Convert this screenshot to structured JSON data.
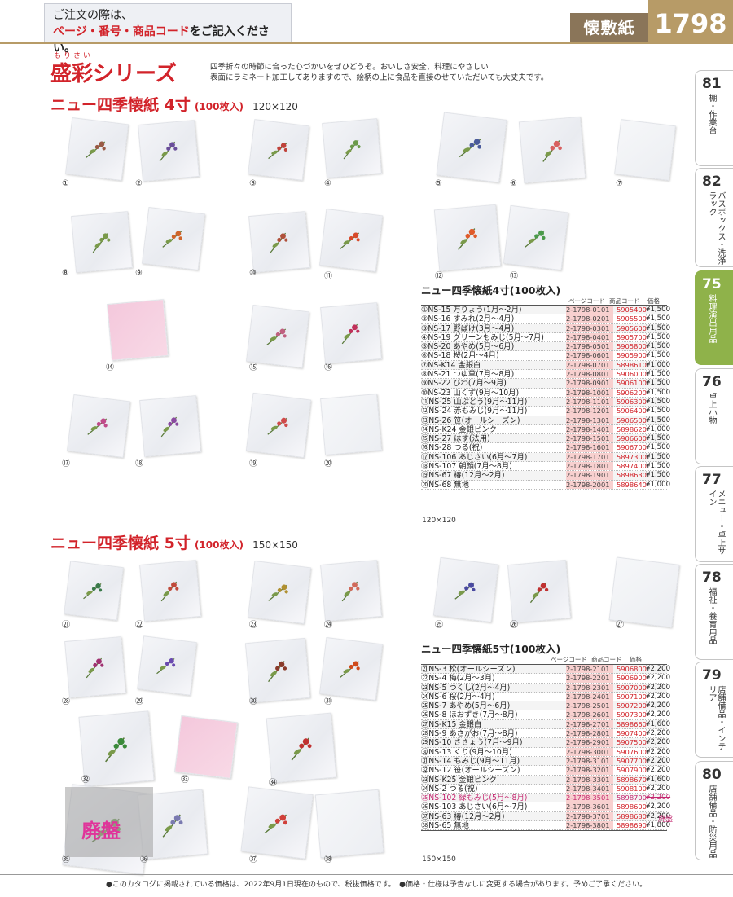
{
  "header": {
    "note_line1": "ご注文の際は、",
    "note_red": "ページ・番号・商品コード",
    "note_rest": "をご記入ください。",
    "category": "懐敷紙",
    "page_number": "1798"
  },
  "series": {
    "ruby": "もりさい",
    "title": "盛彩シリーズ",
    "intro_line1": "四季折々の時節に合った心づかいをぜひどうぞ。おいしさ安全、料理にやさしい",
    "intro_line2": "表面にラミネート加工してありますので、絵柄の上に食品を直接のせていただいても大丈夫です。"
  },
  "section4": {
    "title": "ニュー四季懐紙 4寸",
    "count": "(100枚入)",
    "size": "120×120",
    "table_title": "ニュー四季懐紙4寸(100枚入)",
    "col_page": "ページコード",
    "col_code": "商品コード",
    "col_price": "価格",
    "size_note": "120×120",
    "items": [
      {
        "no": "①",
        "name": "NS-15 万りょう(1月～2月)",
        "page": "2-1798-0101",
        "code": "5905400",
        "price": "¥1,500"
      },
      {
        "no": "②",
        "name": "NS-16 すみれ(2月～4月)",
        "page": "2-1798-0201",
        "code": "5905500",
        "price": "¥1,500"
      },
      {
        "no": "③",
        "name": "NS-17 野ばけ(3月～4月)",
        "page": "2-1798-0301",
        "code": "5905600",
        "price": "¥1,500"
      },
      {
        "no": "④",
        "name": "NS-19 グリーンもみじ(5月～7月)",
        "page": "2-1798-0401",
        "code": "5905700",
        "price": "¥1,500"
      },
      {
        "no": "⑤",
        "name": "NS-20 あやめ(5月～6月)",
        "page": "2-1798-0501",
        "code": "5905800",
        "price": "¥1,500"
      },
      {
        "no": "⑥",
        "name": "NS-18 桜(2月～4月)",
        "page": "2-1798-0601",
        "code": "5905900",
        "price": "¥1,500"
      },
      {
        "no": "⑦",
        "name": "NS-K14 金銀白",
        "page": "2-1798-0701",
        "code": "5898610",
        "price": "¥1,000"
      },
      {
        "no": "⑧",
        "name": "NS-21 つゆ草(7月～8月)",
        "page": "2-1798-0801",
        "code": "5906000",
        "price": "¥1,500"
      },
      {
        "no": "⑨",
        "name": "NS-22 びわ(7月～9月)",
        "page": "2-1798-0901",
        "code": "5906100",
        "price": "¥1,500"
      },
      {
        "no": "⑩",
        "name": "NS-23 山くず(9月～10月)",
        "page": "2-1798-1001",
        "code": "5906200",
        "price": "¥1,500"
      },
      {
        "no": "⑪",
        "name": "NS-25 山ぶどう(9月～11月)",
        "page": "2-1798-1101",
        "code": "5906300",
        "price": "¥1,500"
      },
      {
        "no": "⑫",
        "name": "NS-24 赤もみじ(9月～11月)",
        "page": "2-1798-1201",
        "code": "5906400",
        "price": "¥1,500"
      },
      {
        "no": "⑬",
        "name": "NS-26 笹(オールシーズン)",
        "page": "2-1798-1301",
        "code": "5906500",
        "price": "¥1,500"
      },
      {
        "no": "⑭",
        "name": "NS-K24 金銀ピンク",
        "page": "2-1798-1401",
        "code": "5898620",
        "price": "¥1,000"
      },
      {
        "no": "⑮",
        "name": "NS-27 はす(法用)",
        "page": "2-1798-1501",
        "code": "5906600",
        "price": "¥1,500"
      },
      {
        "no": "⑯",
        "name": "NS-28 つる(祝)",
        "page": "2-1798-1601",
        "code": "5906700",
        "price": "¥1,500"
      },
      {
        "no": "⑰",
        "name": "NS-106 あじさい(6月～7月)",
        "page": "2-1798-1701",
        "code": "5897300",
        "price": "¥1,500"
      },
      {
        "no": "⑱",
        "name": "NS-107 朝顔(7月～8月)",
        "page": "2-1798-1801",
        "code": "5897400",
        "price": "¥1,500"
      },
      {
        "no": "⑲",
        "name": "NS-67 椿(12月～2月)",
        "page": "2-1798-1901",
        "code": "5898630",
        "price": "¥1,500"
      },
      {
        "no": "⑳",
        "name": "NS-68 無地",
        "page": "2-1798-2001",
        "code": "5898640",
        "price": "¥1,000"
      }
    ]
  },
  "section5": {
    "title": "ニュー四季懐紙 5寸",
    "count": "(100枚入)",
    "size": "150×150",
    "table_title": "ニュー四季懐紙5寸(100枚入)",
    "col_page": "ページコード",
    "col_code": "商品コード",
    "col_price": "価格",
    "size_note": "150×150",
    "discontinued_tag": "廃盤",
    "items": [
      {
        "no": "㉑",
        "name": "NS-3 松(オールシーズン)",
        "page": "2-1798-2101",
        "code": "5906800",
        "price": "¥2,200"
      },
      {
        "no": "㉒",
        "name": "NS-4 梅(2月～3月)",
        "page": "2-1798-2201",
        "code": "5906900",
        "price": "¥2,200"
      },
      {
        "no": "㉓",
        "name": "NS-5 つくし(2月～4月)",
        "page": "2-1798-2301",
        "code": "5907000",
        "price": "¥2,200"
      },
      {
        "no": "㉔",
        "name": "NS-6 桜(2月～4月)",
        "page": "2-1798-2401",
        "code": "5907100",
        "price": "¥2,200"
      },
      {
        "no": "㉕",
        "name": "NS-7 あやめ(5月～6月)",
        "page": "2-1798-2501",
        "code": "5907200",
        "price": "¥2,200"
      },
      {
        "no": "㉖",
        "name": "NS-8 ほおずき(7月～8月)",
        "page": "2-1798-2601",
        "code": "5907300",
        "price": "¥2,200"
      },
      {
        "no": "㉗",
        "name": "NS-K15 金銀白",
        "page": "2-1798-2701",
        "code": "5898660",
        "price": "¥1,600"
      },
      {
        "no": "㉘",
        "name": "NS-9 あさがお(7月～8月)",
        "page": "2-1798-2801",
        "code": "5907400",
        "price": "¥2,200"
      },
      {
        "no": "㉙",
        "name": "NS-10 ききょう(7月～9月)",
        "page": "2-1798-2901",
        "code": "5907500",
        "price": "¥2,200"
      },
      {
        "no": "㉚",
        "name": "NS-13 くり(9月～10月)",
        "page": "2-1798-3001",
        "code": "5907600",
        "price": "¥2,200"
      },
      {
        "no": "㉛",
        "name": "NS-14 もみじ(9月～11月)",
        "page": "2-1798-3101",
        "code": "5907700",
        "price": "¥2,200"
      },
      {
        "no": "㉜",
        "name": "NS-12 笹(オールシーズン)",
        "page": "2-1798-3201",
        "code": "5907900",
        "price": "¥2,200"
      },
      {
        "no": "㉝",
        "name": "NS-K25 金銀ピンク",
        "page": "2-1798-3301",
        "code": "5898670",
        "price": "¥1,600"
      },
      {
        "no": "㉞",
        "name": "NS-2 つる(祝)",
        "page": "2-1798-3401",
        "code": "5908100",
        "price": "¥2,200"
      },
      {
        "no": "㉟",
        "name": "NS-102 緑もみじ(5月～8月)",
        "page": "2-1798-3501",
        "code": "5898700",
        "price": "¥2,200",
        "discontinued": true
      },
      {
        "no": "㊱",
        "name": "NS-103 あじさい(6月～7月)",
        "page": "2-1798-3601",
        "code": "5898600",
        "price": "¥2,200"
      },
      {
        "no": "㊲",
        "name": "NS-63 椿(12月～2月)",
        "page": "2-1798-3701",
        "code": "5898680",
        "price": "¥2,200"
      },
      {
        "no": "㊳",
        "name": "NS-65 無地",
        "page": "2-1798-3801",
        "code": "5898690",
        "price": "¥1,800"
      }
    ]
  },
  "photo_labels4": [
    "①",
    "②",
    "③",
    "④",
    "⑤",
    "⑥",
    "⑦",
    "⑧",
    "⑨",
    "⑩",
    "⑪",
    "⑫",
    "⑬",
    "⑭",
    "⑮",
    "⑯",
    "⑰",
    "⑱",
    "⑲",
    "⑳"
  ],
  "photo_labels5": [
    "㉑",
    "㉒",
    "㉓",
    "㉔",
    "㉕",
    "㉖",
    "㉗",
    "㉘",
    "㉙",
    "㉚",
    "㉛",
    "㉜",
    "㉝",
    "㉞",
    "㉟",
    "㊱",
    "㊲",
    "㊳"
  ],
  "haiban_overlay": "廃盤",
  "side_index": [
    {
      "num": "81",
      "label": "棚・作業台"
    },
    {
      "num": "82",
      "label": "バスボックス・洗浄ラック"
    },
    {
      "num": "75",
      "label": "料理演出用品",
      "active": true
    },
    {
      "num": "76",
      "label": "卓上小物"
    },
    {
      "num": "77",
      "label": "メニュー・卓上サイン"
    },
    {
      "num": "78",
      "label": "福祉・養育用品"
    },
    {
      "num": "79",
      "label": "店舗備品・インテリア"
    },
    {
      "num": "80",
      "label": "店舗備品・防災用品"
    }
  ],
  "footer": "●このカタログに掲載されている価格は、2022年9月1日現在のもので、税抜価格です。　●価格・仕様は予告なしに変更する場合があります。予めご了承ください。",
  "colors": {
    "accent_red": "#d2232a",
    "category_brown": "#8a7559",
    "page_gold": "#b79b67",
    "active_tab": "#8fb24a",
    "discontinued": "#c4266f"
  }
}
